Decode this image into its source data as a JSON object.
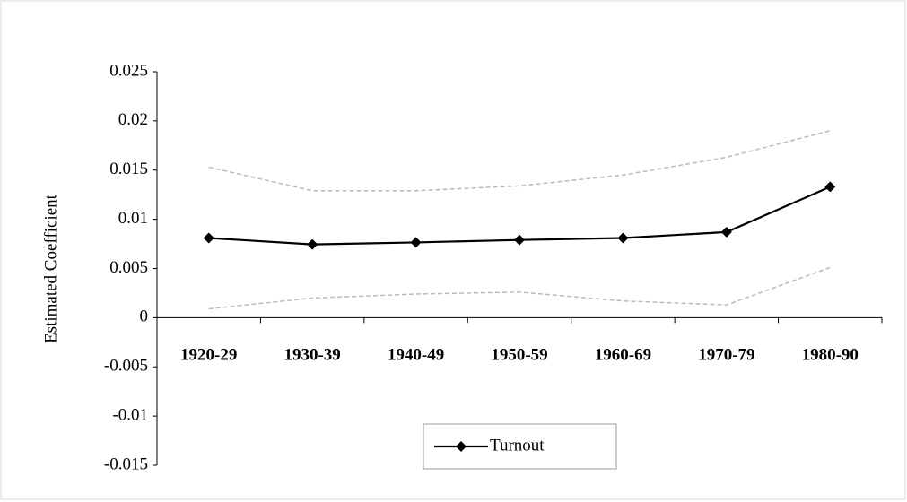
{
  "chart_data": {
    "type": "line",
    "y_label": "Estimated Coefficient",
    "categories": [
      "1920-29",
      "1930-39",
      "1940-49",
      "1950-59",
      "1960-69",
      "1970-79",
      "1980-90"
    ],
    "series": [
      {
        "name": "Turnout",
        "color": "#000000",
        "values": [
          0.0081,
          0.00745,
          0.00765,
          0.0079,
          0.0081,
          0.0087,
          0.0133
        ]
      },
      {
        "color": "#bbbbbb",
        "dashed": true,
        "values": [
          0.0153,
          0.0129,
          0.0129,
          0.0134,
          0.0145,
          0.0163,
          0.019
        ]
      },
      {
        "color": "#bbbbbb",
        "dashed": true,
        "values": [
          0.0009,
          0.002,
          0.0024,
          0.0026,
          0.0017,
          0.0013,
          0.0051
        ]
      }
    ],
    "ylim": [
      -0.015,
      0.025
    ],
    "yticks": [
      -0.015,
      -0.01,
      -0.005,
      0,
      0.005,
      0.01,
      0.015,
      0.02,
      0.025
    ],
    "grid": false,
    "legend": "bottom"
  }
}
